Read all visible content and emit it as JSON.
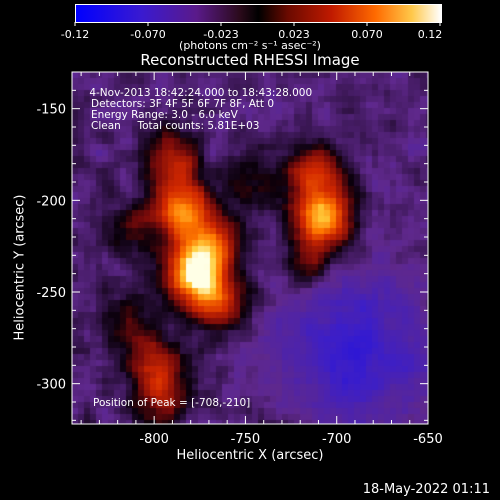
{
  "colorbar": {
    "ticks": [
      "-0.12",
      "-0.070",
      "-0.023",
      "0.023",
      "0.070",
      "0.12"
    ],
    "units_text": "(photons cm⁻² s⁻¹ asec⁻²)"
  },
  "chart_data": {
    "type": "heatmap",
    "title": "Reconstructed RHESSI Image",
    "xlabel": "Heliocentric X (arcsec)",
    "ylabel": "Heliocentric Y (arcsec)",
    "xlim": [
      -845,
      -650
    ],
    "ylim": [
      -322,
      -130
    ],
    "x_ticks": [
      "-800",
      "-750",
      "-700",
      "-650"
    ],
    "y_ticks": [
      "-150",
      "-200",
      "-250",
      "-300"
    ],
    "colorbar_range": [
      -0.12,
      0.12
    ],
    "sources": [
      {
        "x": -785,
        "y": -205,
        "intensity": 0.1
      },
      {
        "x": -778,
        "y": -240,
        "intensity": 0.12
      },
      {
        "x": -708,
        "y": -210,
        "intensity": 0.12
      },
      {
        "x": -712,
        "y": -185,
        "intensity": 0.07
      },
      {
        "x": -800,
        "y": -290,
        "intensity": 0.06
      }
    ],
    "negative_region": {
      "x": -690,
      "y": -280,
      "intensity": -0.05
    }
  },
  "info": {
    "line1": " 4-Nov-2013 18:42:24.000 to 18:43:28.000",
    "line2": "Detectors: 3F 4F 5F 6F 7F 8F, Att 0",
    "line3": "Energy Range: 3.0 - 6.0 keV",
    "line4": "Clean     Total counts: 5.81E+03",
    "peak": "Position of Peak = [-708,-210]"
  },
  "datestamp": "18-May-2022 01:11"
}
